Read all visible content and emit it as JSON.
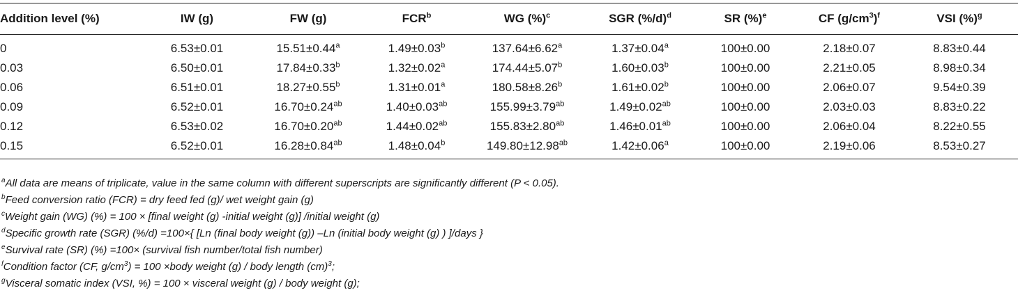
{
  "table": {
    "headers": [
      {
        "text": "Addition level (%)",
        "sup": ""
      },
      {
        "text": "IW (g)",
        "sup": ""
      },
      {
        "text": "FW (g)",
        "sup": ""
      },
      {
        "text": "FCR",
        "sup": "b"
      },
      {
        "text": "WG (%)",
        "sup": "c"
      },
      {
        "text": "SGR (%/d)",
        "sup": "d"
      },
      {
        "text": "SR (%)",
        "sup": "e"
      },
      {
        "text": "CF (g/cm",
        "sup": "3",
        "after": ")",
        "sup2": "f"
      },
      {
        "text": "VSI (%)",
        "sup": "g"
      }
    ],
    "rows": [
      [
        {
          "v": "0"
        },
        {
          "v": "6.53±0.01"
        },
        {
          "v": "15.51±0.44",
          "s": "a"
        },
        {
          "v": "1.49±0.03",
          "s": "b"
        },
        {
          "v": "137.64±6.62",
          "s": "a"
        },
        {
          "v": "1.37±0.04",
          "s": "a"
        },
        {
          "v": "100±0.00"
        },
        {
          "v": "2.18±0.07"
        },
        {
          "v": "8.83±0.44"
        }
      ],
      [
        {
          "v": "0.03"
        },
        {
          "v": "6.50±0.01"
        },
        {
          "v": "17.84±0.33",
          "s": "b"
        },
        {
          "v": "1.32±0.02",
          "s": "a"
        },
        {
          "v": "174.44±5.07",
          "s": "b"
        },
        {
          "v": "1.60±0.03",
          "s": "b"
        },
        {
          "v": "100±0.00"
        },
        {
          "v": "2.21±0.05"
        },
        {
          "v": "8.98±0.34"
        }
      ],
      [
        {
          "v": "0.06"
        },
        {
          "v": "6.51±0.01"
        },
        {
          "v": "18.27±0.55",
          "s": "b"
        },
        {
          "v": "1.31±0.01",
          "s": "a"
        },
        {
          "v": "180.58±8.26",
          "s": "b"
        },
        {
          "v": "1.61±0.02",
          "s": "b"
        },
        {
          "v": "100±0.00"
        },
        {
          "v": "2.06±0.07"
        },
        {
          "v": "9.54±0.39"
        }
      ],
      [
        {
          "v": "0.09"
        },
        {
          "v": "6.52±0.01"
        },
        {
          "v": "16.70±0.24",
          "s": "ab"
        },
        {
          "v": "1.40±0.03",
          "s": "ab"
        },
        {
          "v": "155.99±3.79",
          "s": "ab"
        },
        {
          "v": "1.49±0.02",
          "s": "ab"
        },
        {
          "v": "100±0.00"
        },
        {
          "v": "2.03±0.03"
        },
        {
          "v": "8.83±0.22"
        }
      ],
      [
        {
          "v": "0.12"
        },
        {
          "v": "6.53±0.02"
        },
        {
          "v": "16.70±0.20",
          "s": "ab"
        },
        {
          "v": "1.44±0.02",
          "s": "ab"
        },
        {
          "v": "155.83±2.80",
          "s": "ab"
        },
        {
          "v": "1.46±0.01",
          "s": "ab"
        },
        {
          "v": "100±0.00"
        },
        {
          "v": "2.06±0.04"
        },
        {
          "v": "8.22±0.55"
        }
      ],
      [
        {
          "v": "0.15"
        },
        {
          "v": "6.52±0.01"
        },
        {
          "v": "16.28±0.84",
          "s": "ab"
        },
        {
          "v": "1.48±0.04",
          "s": "b"
        },
        {
          "v": "149.80±12.98",
          "s": "ab"
        },
        {
          "v": "1.42±0.06",
          "s": "a"
        },
        {
          "v": "100±0.00"
        },
        {
          "v": "2.19±0.06"
        },
        {
          "v": "8.53±0.27"
        }
      ]
    ]
  },
  "footnotes": [
    {
      "sup": "a",
      "parts": [
        {
          "t": "All data are means of triplicate, value in the same column with different superscripts are significantly different (P < 0.05)."
        }
      ]
    },
    {
      "sup": "b",
      "parts": [
        {
          "t": "Feed conversion ratio (FCR) = dry feed fed (g)/ wet weight gain (g)"
        }
      ]
    },
    {
      "sup": "c",
      "parts": [
        {
          "t": "Weight gain (WG) (%) = 100 × [final weight (g) -initial weight (g)] /initial weight (g)"
        }
      ]
    },
    {
      "sup": "d",
      "parts": [
        {
          "t": "Specific growth rate (SGR) (%/d) =100×{ [Ln (final body weight (g)) –Ln (initial body weight (g) ) ]/days }"
        }
      ]
    },
    {
      "sup": "e",
      "parts": [
        {
          "t": "Survival rate (SR) (%) =100× (survival fish number/total fish number)"
        }
      ]
    },
    {
      "sup": "f",
      "parts": [
        {
          "t": "Condition factor (CF, g/cm"
        },
        {
          "s": "3"
        },
        {
          "t": ") = 100 ×body weight (g) / body length (cm)"
        },
        {
          "s": "3"
        },
        {
          "t": ";"
        }
      ]
    },
    {
      "sup": "g",
      "parts": [
        {
          "t": "Visceral somatic index (VSI, %) = 100 × visceral weight (g) / body weight (g);"
        }
      ]
    }
  ]
}
